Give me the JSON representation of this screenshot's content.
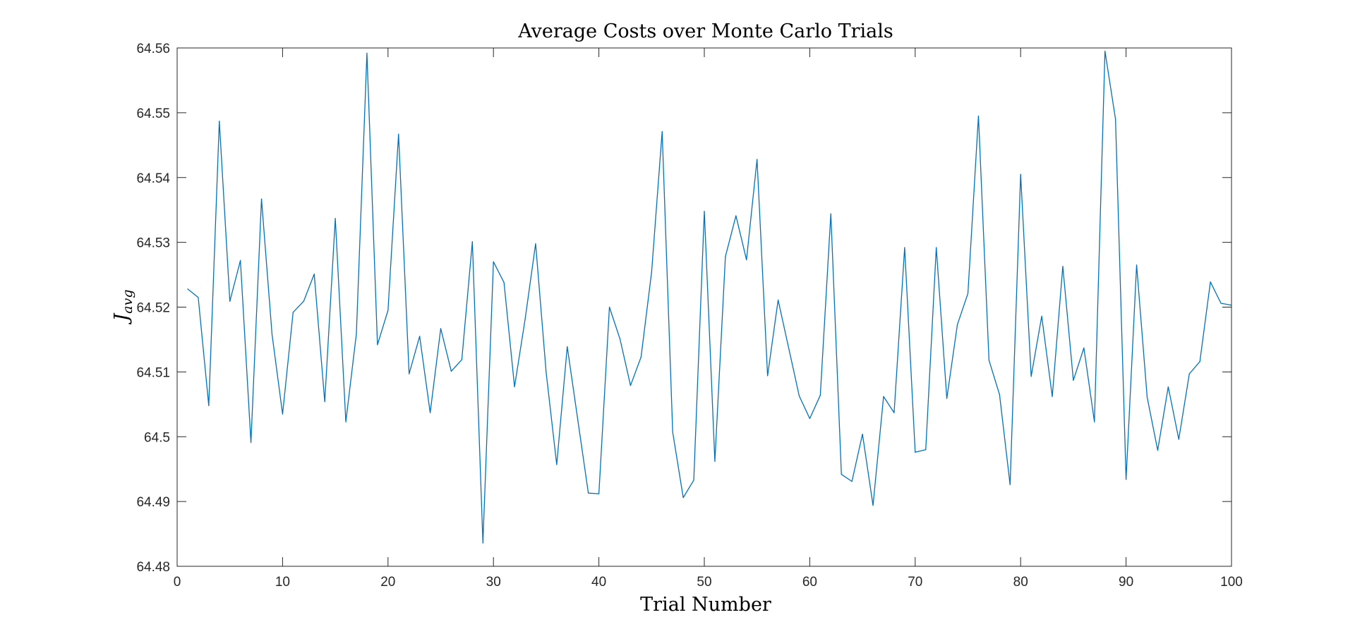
{
  "chart_data": {
    "type": "line",
    "title": "Average Costs over Monte Carlo Trials",
    "xlabel": "Trial Number",
    "ylabel": "J",
    "ylabel_subscript": "avg",
    "xlim": [
      0,
      100
    ],
    "ylim": [
      64.48,
      64.56
    ],
    "xticks": [
      0,
      10,
      20,
      30,
      40,
      50,
      60,
      70,
      80,
      90,
      100
    ],
    "xtick_labels": [
      "0",
      "10",
      "20",
      "30",
      "40",
      "50",
      "60",
      "70",
      "80",
      "90",
      "100"
    ],
    "yticks": [
      64.48,
      64.49,
      64.5,
      64.51,
      64.52,
      64.53,
      64.54,
      64.55,
      64.56
    ],
    "ytick_labels": [
      "64.48",
      "64.49",
      "64.5",
      "64.51",
      "64.52",
      "64.53",
      "64.54",
      "64.55",
      "64.56"
    ],
    "grid": false,
    "legend": "none",
    "line_color": "#0072BD",
    "series": [
      {
        "x": [
          1,
          2,
          3,
          4,
          5,
          6,
          7,
          8,
          9,
          10,
          11,
          12,
          13,
          14,
          15,
          16,
          17,
          18,
          19,
          20,
          21,
          22,
          23,
          24,
          25,
          26,
          27,
          28,
          29,
          30,
          31,
          32,
          33,
          34,
          35,
          36,
          37,
          38,
          39,
          40,
          41,
          42,
          43,
          44,
          45,
          46,
          47,
          48,
          49,
          50,
          51,
          52,
          53,
          54,
          55,
          56,
          57,
          58,
          59,
          60,
          61,
          62,
          63,
          64,
          65,
          66,
          67,
          68,
          69,
          70,
          71,
          72,
          73,
          74,
          75,
          76,
          77,
          78,
          79,
          80,
          81,
          82,
          83,
          84,
          85,
          86,
          87,
          88,
          89,
          90,
          91,
          92,
          93,
          94,
          95,
          96,
          97,
          98,
          99,
          100
        ],
        "values": [
          64.5228,
          64.5215,
          64.5048,
          64.5487,
          64.5209,
          64.5272,
          64.4991,
          64.5367,
          64.5158,
          64.5035,
          64.5192,
          64.5209,
          64.5251,
          64.5054,
          64.5337,
          64.5023,
          64.5159,
          64.5592,
          64.5142,
          64.5195,
          64.5467,
          64.5097,
          64.5155,
          64.5037,
          64.5167,
          64.5101,
          64.5119,
          64.5301,
          64.4836,
          64.527,
          64.5238,
          64.5077,
          64.5181,
          64.5298,
          64.5099,
          64.4957,
          64.5139,
          64.5026,
          64.4913,
          64.4912,
          64.52,
          64.5151,
          64.5079,
          64.5123,
          64.5254,
          64.5471,
          64.5007,
          64.4906,
          64.4933,
          64.5348,
          64.4962,
          64.5278,
          64.5341,
          64.5273,
          64.5428,
          64.5094,
          64.5211,
          64.5137,
          64.5063,
          64.5028,
          64.5064,
          64.5344,
          64.4942,
          64.4931,
          64.5004,
          64.4894,
          64.5062,
          64.5037,
          64.5292,
          64.4976,
          64.498,
          64.5292,
          64.5059,
          64.5173,
          64.5221,
          64.5495,
          64.5118,
          64.5065,
          64.4926,
          64.5405,
          64.5093,
          64.5186,
          64.5062,
          64.5263,
          64.5087,
          64.5137,
          64.5023,
          64.5595,
          64.549,
          64.4934,
          64.5265,
          64.5061,
          64.4979,
          64.5077,
          64.4996,
          64.5097,
          64.5116,
          64.5239,
          64.5206,
          64.5203
        ]
      }
    ]
  }
}
